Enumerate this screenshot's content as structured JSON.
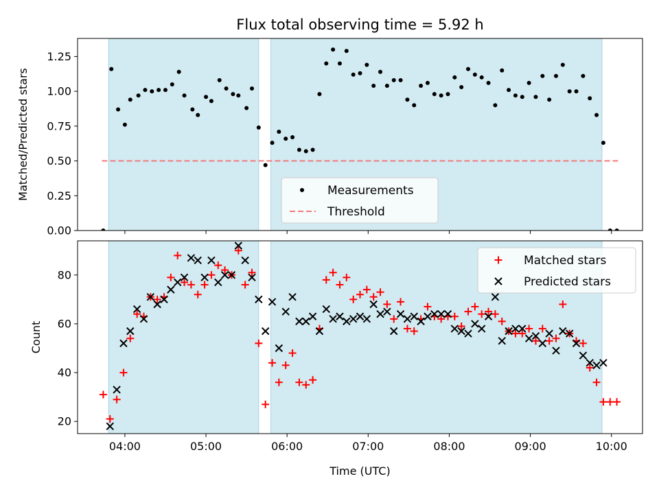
{
  "chart_data": [
    {
      "type": "scatter",
      "title": "Flux total observing time = 5.92 h",
      "xlabel": "",
      "ylabel": "Matched/Predicted stars",
      "ylim": [
        0,
        1.38
      ],
      "yticks": [
        "0.00",
        "0.25",
        "0.50",
        "0.75",
        "1.00",
        "1.25"
      ],
      "ytick_values": [
        0,
        0.25,
        0.5,
        0.75,
        1.0,
        1.25
      ],
      "xlim": [
        "03:25",
        "10:23"
      ],
      "x_minor_ticks": [
        "04:00",
        "05:00",
        "06:00",
        "07:00",
        "08:00",
        "09:00",
        "10:00"
      ],
      "observing_windows": [
        [
          "03:48",
          "05:39"
        ],
        [
          "05:48",
          "09:53"
        ]
      ],
      "window_color": "#d2eaf1",
      "legend_placement": "lower-center",
      "series": [
        {
          "name": "Measurements",
          "marker": "dot",
          "color": "#000000",
          "points": [
            [
              "03:44",
              0.0
            ],
            [
              "03:50",
              1.16
            ],
            [
              "03:55",
              0.87
            ],
            [
              "04:00",
              0.76
            ],
            [
              "04:04",
              0.94
            ],
            [
              "04:10",
              0.97
            ],
            [
              "04:15",
              1.01
            ],
            [
              "04:20",
              1.0
            ],
            [
              "04:25",
              1.01
            ],
            [
              "04:30",
              1.01
            ],
            [
              "04:35",
              1.05
            ],
            [
              "04:40",
              1.14
            ],
            [
              "04:44",
              0.97
            ],
            [
              "04:50",
              0.87
            ],
            [
              "04:54",
              0.83
            ],
            [
              "05:00",
              0.96
            ],
            [
              "05:04",
              0.93
            ],
            [
              "05:10",
              1.08
            ],
            [
              "05:15",
              1.02
            ],
            [
              "05:20",
              0.98
            ],
            [
              "05:24",
              0.97
            ],
            [
              "05:30",
              0.88
            ],
            [
              "05:34",
              1.02
            ],
            [
              "05:39",
              0.74
            ],
            [
              "05:44",
              0.47
            ],
            [
              "05:49",
              0.63
            ],
            [
              "05:54",
              0.71
            ],
            [
              "05:59",
              0.66
            ],
            [
              "06:04",
              0.67
            ],
            [
              "06:09",
              0.58
            ],
            [
              "06:14",
              0.57
            ],
            [
              "06:19",
              0.58
            ],
            [
              "06:24",
              0.98
            ],
            [
              "06:29",
              1.2
            ],
            [
              "06:34",
              1.3
            ],
            [
              "06:39",
              1.2
            ],
            [
              "06:44",
              1.29
            ],
            [
              "06:49",
              1.12
            ],
            [
              "06:54",
              1.13
            ],
            [
              "06:59",
              1.19
            ],
            [
              "07:04",
              1.04
            ],
            [
              "07:09",
              1.14
            ],
            [
              "07:14",
              1.04
            ],
            [
              "07:19",
              1.08
            ],
            [
              "07:24",
              1.08
            ],
            [
              "07:29",
              0.94
            ],
            [
              "07:34",
              0.9
            ],
            [
              "07:39",
              1.04
            ],
            [
              "07:44",
              1.06
            ],
            [
              "07:49",
              0.98
            ],
            [
              "07:54",
              0.97
            ],
            [
              "07:59",
              0.98
            ],
            [
              "08:04",
              1.1
            ],
            [
              "08:09",
              1.03
            ],
            [
              "08:14",
              1.16
            ],
            [
              "08:19",
              1.12
            ],
            [
              "08:24",
              1.1
            ],
            [
              "08:29",
              1.06
            ],
            [
              "08:34",
              0.9
            ],
            [
              "08:39",
              1.15
            ],
            [
              "08:44",
              1.01
            ],
            [
              "08:49",
              0.97
            ],
            [
              "08:54",
              0.96
            ],
            [
              "08:59",
              1.06
            ],
            [
              "09:04",
              0.96
            ],
            [
              "09:09",
              1.11
            ],
            [
              "09:14",
              0.94
            ],
            [
              "09:19",
              1.11
            ],
            [
              "09:24",
              1.19
            ],
            [
              "09:29",
              1.0
            ],
            [
              "09:34",
              1.0
            ],
            [
              "09:39",
              1.11
            ],
            [
              "09:44",
              0.95
            ],
            [
              "09:49",
              0.83
            ],
            [
              "09:54",
              0.63
            ],
            [
              "09:59",
              0.0
            ],
            [
              "10:04",
              0.0
            ]
          ]
        },
        {
          "name": "Threshold",
          "type": "line",
          "style": "dashed",
          "color": "#f07a7a",
          "points": [
            [
              "03:43",
              0.5
            ],
            [
              "10:05",
              0.5
            ]
          ]
        }
      ]
    },
    {
      "type": "scatter",
      "title": "",
      "xlabel": "Time (UTC)",
      "ylabel": "Count",
      "ylim": [
        15,
        94
      ],
      "yticks": [
        "20",
        "40",
        "60",
        "80"
      ],
      "ytick_values": [
        20,
        40,
        60,
        80
      ],
      "xlim": [
        "03:25",
        "10:23"
      ],
      "xticks": [
        "04:00",
        "05:00",
        "06:00",
        "07:00",
        "08:00",
        "09:00",
        "10:00"
      ],
      "observing_windows": [
        [
          "03:48",
          "05:39"
        ],
        [
          "05:48",
          "09:53"
        ]
      ],
      "window_color": "#d2eaf1",
      "legend_placement": "top-right",
      "series": [
        {
          "name": "Matched stars",
          "marker": "plus",
          "color": "#ff0000",
          "points": [
            [
              "03:44",
              31
            ],
            [
              "03:49",
              21
            ],
            [
              "03:54",
              29
            ],
            [
              "03:59",
              40
            ],
            [
              "04:04",
              54
            ],
            [
              "04:09",
              64
            ],
            [
              "04:14",
              63
            ],
            [
              "04:19",
              71
            ],
            [
              "04:24",
              70
            ],
            [
              "04:29",
              71
            ],
            [
              "04:34",
              79
            ],
            [
              "04:39",
              88
            ],
            [
              "04:44",
              77
            ],
            [
              "04:49",
              76
            ],
            [
              "04:54",
              72
            ],
            [
              "04:59",
              76
            ],
            [
              "05:04",
              80
            ],
            [
              "05:09",
              84
            ],
            [
              "05:14",
              82
            ],
            [
              "05:19",
              80
            ],
            [
              "05:24",
              90
            ],
            [
              "05:29",
              76
            ],
            [
              "05:34",
              81
            ],
            [
              "05:39",
              52
            ],
            [
              "05:44",
              27
            ],
            [
              "05:49",
              44
            ],
            [
              "05:54",
              36
            ],
            [
              "05:59",
              43
            ],
            [
              "06:04",
              48
            ],
            [
              "06:09",
              36
            ],
            [
              "06:14",
              35
            ],
            [
              "06:19",
              37
            ],
            [
              "06:24",
              58
            ],
            [
              "06:29",
              78
            ],
            [
              "06:34",
              81
            ],
            [
              "06:39",
              76
            ],
            [
              "06:44",
              79
            ],
            [
              "06:49",
              70
            ],
            [
              "06:54",
              72
            ],
            [
              "06:59",
              74
            ],
            [
              "07:04",
              71
            ],
            [
              "07:09",
              73
            ],
            [
              "07:14",
              68
            ],
            [
              "07:19",
              62
            ],
            [
              "07:24",
              69
            ],
            [
              "07:29",
              58
            ],
            [
              "07:34",
              57
            ],
            [
              "07:39",
              62
            ],
            [
              "07:44",
              67
            ],
            [
              "07:49",
              63
            ],
            [
              "07:54",
              62
            ],
            [
              "07:59",
              63
            ],
            [
              "08:04",
              63
            ],
            [
              "08:09",
              59
            ],
            [
              "08:14",
              65
            ],
            [
              "08:19",
              67
            ],
            [
              "08:24",
              64
            ],
            [
              "08:29",
              65
            ],
            [
              "08:34",
              64
            ],
            [
              "08:39",
              61
            ],
            [
              "08:44",
              57
            ],
            [
              "08:49",
              56
            ],
            [
              "08:54",
              56
            ],
            [
              "08:59",
              58
            ],
            [
              "09:04",
              53
            ],
            [
              "09:09",
              58
            ],
            [
              "09:14",
              53
            ],
            [
              "09:19",
              54
            ],
            [
              "09:24",
              68
            ],
            [
              "09:29",
              56
            ],
            [
              "09:34",
              53
            ],
            [
              "09:39",
              52
            ],
            [
              "09:44",
              42
            ],
            [
              "09:49",
              36
            ],
            [
              "09:54",
              28
            ],
            [
              "09:59",
              28
            ],
            [
              "10:04",
              28
            ]
          ]
        },
        {
          "name": "Predicted stars",
          "marker": "x",
          "color": "#000000",
          "points": [
            [
              "03:49",
              18
            ],
            [
              "03:54",
              33
            ],
            [
              "03:59",
              52
            ],
            [
              "04:04",
              57
            ],
            [
              "04:09",
              66
            ],
            [
              "04:14",
              62
            ],
            [
              "04:19",
              71
            ],
            [
              "04:24",
              68
            ],
            [
              "04:29",
              70
            ],
            [
              "04:34",
              74
            ],
            [
              "04:39",
              77
            ],
            [
              "04:44",
              79
            ],
            [
              "04:49",
              87
            ],
            [
              "04:54",
              86
            ],
            [
              "04:59",
              79
            ],
            [
              "05:04",
              86
            ],
            [
              "05:09",
              77
            ],
            [
              "05:14",
              80
            ],
            [
              "05:19",
              80
            ],
            [
              "05:24",
              92
            ],
            [
              "05:29",
              86
            ],
            [
              "05:34",
              79
            ],
            [
              "05:39",
              70
            ],
            [
              "05:44",
              57
            ],
            [
              "05:49",
              69
            ],
            [
              "05:54",
              50
            ],
            [
              "05:59",
              65
            ],
            [
              "06:04",
              71
            ],
            [
              "06:09",
              61
            ],
            [
              "06:14",
              61
            ],
            [
              "06:19",
              63
            ],
            [
              "06:24",
              57
            ],
            [
              "06:29",
              66
            ],
            [
              "06:34",
              62
            ],
            [
              "06:39",
              63
            ],
            [
              "06:44",
              61
            ],
            [
              "06:49",
              62
            ],
            [
              "06:54",
              63
            ],
            [
              "06:59",
              62
            ],
            [
              "07:04",
              68
            ],
            [
              "07:09",
              64
            ],
            [
              "07:14",
              65
            ],
            [
              "07:19",
              57
            ],
            [
              "07:24",
              64
            ],
            [
              "07:29",
              62
            ],
            [
              "07:34",
              63
            ],
            [
              "07:39",
              61
            ],
            [
              "07:44",
              63
            ],
            [
              "07:49",
              64
            ],
            [
              "07:54",
              64
            ],
            [
              "07:59",
              64
            ],
            [
              "08:04",
              58
            ],
            [
              "08:09",
              57
            ],
            [
              "08:14",
              56
            ],
            [
              "08:19",
              60
            ],
            [
              "08:24",
              58
            ],
            [
              "08:29",
              63
            ],
            [
              "08:34",
              71
            ],
            [
              "08:39",
              53
            ],
            [
              "08:44",
              57
            ],
            [
              "08:49",
              58
            ],
            [
              "08:54",
              58
            ],
            [
              "08:59",
              54
            ],
            [
              "09:04",
              55
            ],
            [
              "09:09",
              52
            ],
            [
              "09:14",
              56
            ],
            [
              "09:19",
              49
            ],
            [
              "09:24",
              57
            ],
            [
              "09:29",
              56
            ],
            [
              "09:34",
              52
            ],
            [
              "09:39",
              47
            ],
            [
              "09:44",
              44
            ],
            [
              "09:49",
              43
            ],
            [
              "09:54",
              44
            ]
          ]
        }
      ]
    }
  ]
}
